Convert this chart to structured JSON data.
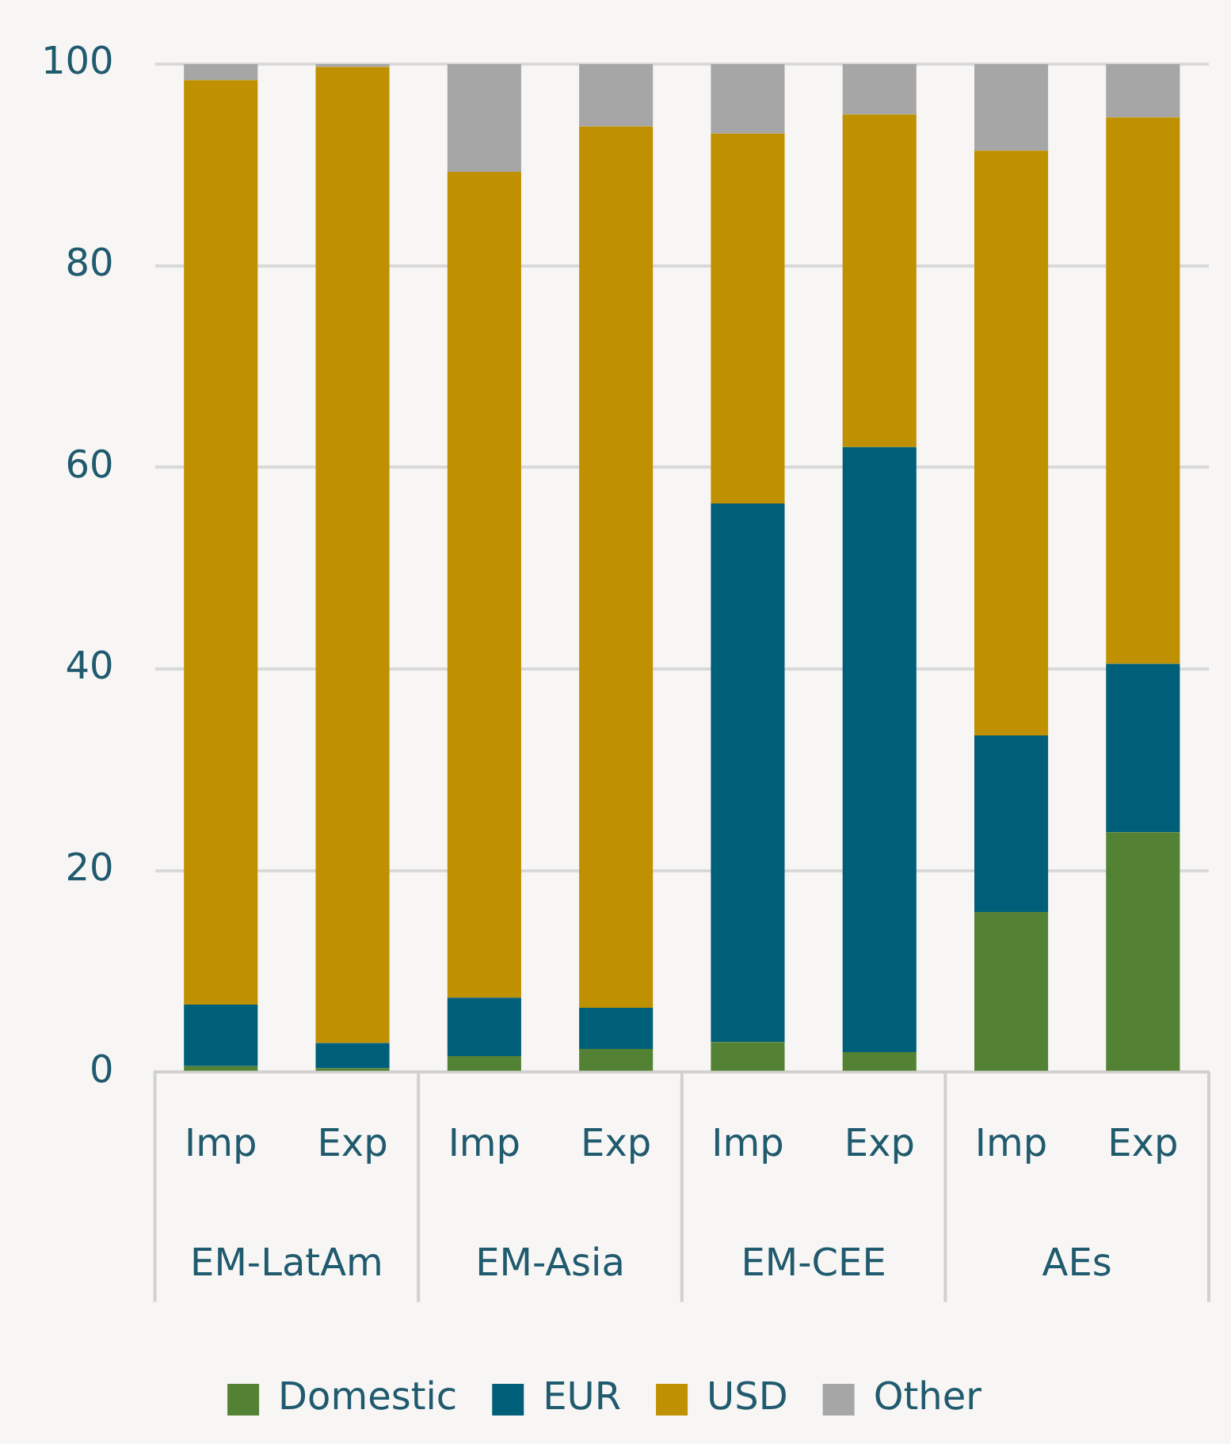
{
  "chart_data": {
    "type": "bar",
    "stacked": true,
    "categories": [
      "Imp",
      "Exp",
      "Imp",
      "Exp",
      "Imp",
      "Exp",
      "Imp",
      "Exp"
    ],
    "annotations": [
      "EM-LatAm",
      "EM-Asia",
      "EM-CEE",
      "AEs"
    ],
    "series": [
      {
        "name": "Domestic",
        "color": "#548235",
        "values": [
          0.6,
          0.4,
          1.6,
          2.3,
          3.0,
          2.0,
          15.9,
          23.8
        ]
      },
      {
        "name": "EUR",
        "color": "#005f78",
        "values": [
          6.1,
          2.5,
          5.8,
          4.1,
          53.4,
          60.0,
          17.5,
          16.7
        ]
      },
      {
        "name": "USD",
        "color": "#bf9000",
        "values": [
          91.7,
          96.8,
          81.9,
          87.4,
          36.7,
          33.0,
          58.0,
          54.2
        ]
      },
      {
        "name": "Other",
        "color": "#a6a6a6",
        "values": [
          1.6,
          0.3,
          10.7,
          6.2,
          6.9,
          5.0,
          8.6,
          5.3
        ]
      }
    ],
    "ylim": [
      0,
      100
    ],
    "yticks": [
      0,
      20,
      40,
      60,
      80,
      100
    ],
    "grid": "y",
    "legend": "bottom"
  }
}
